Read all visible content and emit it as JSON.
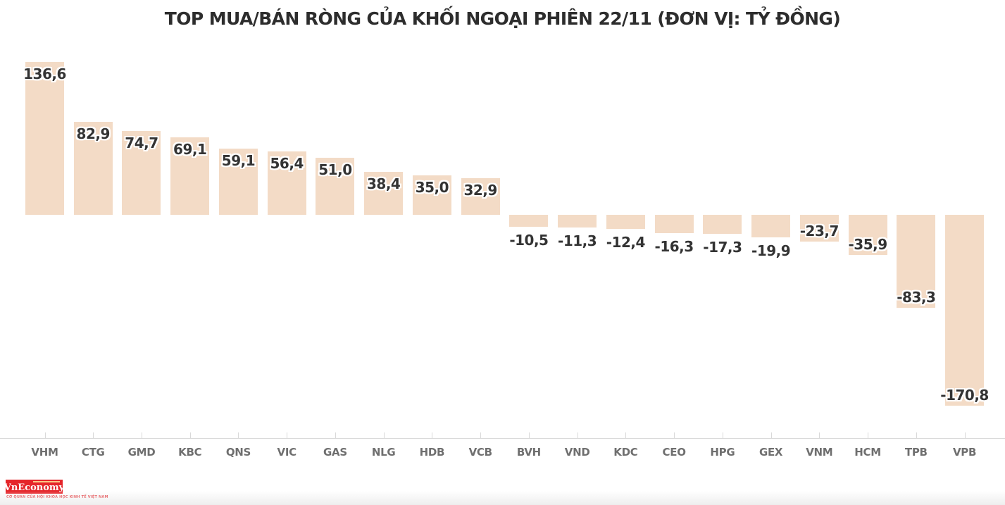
{
  "title": "TOP MUA/BÁN RÒNG CỦA KHỐI NGOẠI PHIÊN 22/11 (ĐƠN VỊ: TỶ ĐỒNG)",
  "chart_data": {
    "type": "bar",
    "title": "TOP MUA/BÁN RÒNG CỦA KHỐI NGOẠI PHIÊN 22/11 (ĐƠN VỊ: TỶ ĐỒNG)",
    "categories": [
      "VHM",
      "CTG",
      "GMD",
      "KBC",
      "QNS",
      "VIC",
      "GAS",
      "NLG",
      "HDB",
      "VCB",
      "BVH",
      "VND",
      "KDC",
      "CEO",
      "HPG",
      "GEX",
      "VNM",
      "HCM",
      "TPB",
      "VPB"
    ],
    "values": [
      136.6,
      82.9,
      74.7,
      69.1,
      59.1,
      56.4,
      51.0,
      38.4,
      35.0,
      32.9,
      -10.5,
      -11.3,
      -12.4,
      -16.3,
      -17.3,
      -19.9,
      -23.7,
      -35.9,
      -83.3,
      -170.8
    ],
    "value_labels": [
      "136,6",
      "82,9",
      "74,7",
      "69,1",
      "59,1",
      "56,4",
      "51,0",
      "38,4",
      "35,0",
      "32,9",
      "-10,5",
      "-11,3",
      "-12,4",
      "-16,3",
      "-17,3",
      "-19,9",
      "-23,7",
      "-35,9",
      "-83,3",
      "-170,8"
    ],
    "xlabel": "",
    "ylabel": "",
    "ylim": [
      -180,
      145
    ],
    "grid": false,
    "legend": "none",
    "colors": {
      "bar": "#f3dbc6",
      "value_label": "#333333",
      "category_label": "#6f6f6f",
      "axis_line": "#d9d9d9",
      "title": "#2d2d2d"
    }
  },
  "branding": {
    "logo_text": "VnEconomy",
    "logo_color": "#e5252a",
    "tagline": "CƠ QUAN CỦA HỘI KHOA HỌC KINH TẾ VIỆT NAM"
  }
}
